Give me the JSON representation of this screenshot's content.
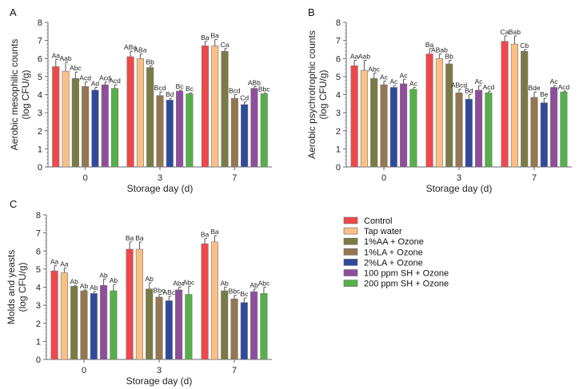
{
  "legend": [
    {
      "label": "Control",
      "color": "#f0474a"
    },
    {
      "label": "Tap water",
      "color": "#fbbf85"
    },
    {
      "label": "1%AA + Ozone",
      "color": "#7a7a43"
    },
    {
      "label": "1%LA + Ozone",
      "color": "#94774f"
    },
    {
      "label": "2%LA + Ozone",
      "color": "#2f4a9b"
    },
    {
      "label": "100 ppm SH + Ozone",
      "color": "#8d4e9c"
    },
    {
      "label": "200 ppm SH + Ozone",
      "color": "#55b04a"
    }
  ],
  "chart_data": [
    {
      "type": "bar",
      "panel": "A",
      "xlabel": "Storage day (d)",
      "ylabel": [
        "Aerobic mesophilic counts",
        "(log CFU/g)"
      ],
      "categories": [
        "0",
        "3",
        "7"
      ],
      "ylim": [
        0,
        8
      ],
      "yticks": [
        "0",
        "1",
        "2",
        "3",
        "4",
        "5",
        "6",
        "7",
        "8"
      ],
      "values": [
        [
          5.55,
          5.3,
          4.9,
          4.45,
          4.25,
          4.55,
          4.35
        ],
        [
          6.1,
          6.0,
          5.5,
          3.95,
          3.7,
          4.2,
          4.05
        ],
        [
          6.7,
          6.7,
          6.4,
          3.8,
          3.45,
          4.35,
          4.05
        ]
      ],
      "errors": [
        [
          0.4,
          0.5,
          0.35,
          0.25,
          0.15,
          0.15,
          0.2
        ],
        [
          0.3,
          0.25,
          0.1,
          0.2,
          0.1,
          0.05,
          0.05
        ],
        [
          0.25,
          0.35,
          0.15,
          0.2,
          0.15,
          0.1,
          0.03
        ]
      ],
      "labels": [
        [
          "Aa",
          "Aab",
          "Abc",
          "Acd",
          "Ad",
          "Acd",
          "Acd"
        ],
        [
          "ABa",
          "ABa",
          "Bb",
          "Bcd",
          "Bd",
          "Bc",
          "Bc"
        ],
        [
          "Ba",
          "Ba",
          "Ca",
          "Bcd",
          "Cd",
          "ABb",
          "Bbc"
        ]
      ]
    },
    {
      "type": "bar",
      "panel": "B",
      "xlabel": "Storage day (d)",
      "ylabel": [
        "Aerobic psychrotrophic counts",
        "(log CFU/g)"
      ],
      "categories": [
        "0",
        "3",
        "7"
      ],
      "ylim": [
        0,
        8
      ],
      "yticks": [
        "0",
        "1",
        "2",
        "3",
        "4",
        "5",
        "6",
        "7",
        "8"
      ],
      "values": [
        [
          5.6,
          5.35,
          4.9,
          4.55,
          4.4,
          4.6,
          4.3
        ],
        [
          6.25,
          6.0,
          5.7,
          4.1,
          3.75,
          4.25,
          4.1
        ],
        [
          6.95,
          6.8,
          6.4,
          3.85,
          3.55,
          4.4,
          4.15
        ]
      ],
      "errors": [
        [
          0.3,
          0.55,
          0.3,
          0.2,
          0.1,
          0.25,
          0.1
        ],
        [
          0.3,
          0.25,
          0.2,
          0.2,
          0.25,
          0.25,
          0.1
        ],
        [
          0.3,
          0.45,
          0.1,
          0.3,
          0.25,
          0.1,
          0.05
        ]
      ],
      "labels": [
        [
          "Aa",
          "Aab",
          "Abc",
          "Ac",
          "Ac",
          "Ac",
          "Ac"
        ],
        [
          "Ba",
          "ABab",
          "Bb",
          "ABcd",
          "Bd",
          "Ac",
          "Acd"
        ],
        [
          "Ca",
          "Bab",
          "Cb",
          "Bde",
          "Be",
          "Ac",
          "Acd"
        ]
      ]
    },
    {
      "type": "bar",
      "panel": "C",
      "xlabel": "Storage day (d)",
      "ylabel": [
        "Molds and yeasts",
        "(log CFU/g)"
      ],
      "categories": [
        "0",
        "3",
        "7"
      ],
      "ylim": [
        0,
        8
      ],
      "yticks": [
        "0",
        "1",
        "2",
        "3",
        "4",
        "5",
        "6",
        "7",
        "8"
      ],
      "values": [
        [
          4.9,
          4.8,
          4.05,
          3.8,
          3.65,
          4.1,
          3.8
        ],
        [
          6.1,
          6.1,
          3.9,
          3.45,
          3.25,
          3.85,
          3.6
        ],
        [
          6.4,
          6.5,
          3.8,
          3.35,
          3.15,
          3.75,
          3.65
        ]
      ],
      "errors": [
        [
          0.3,
          0.25,
          0.03,
          0.05,
          0.1,
          0.35,
          0.35
        ],
        [
          0.4,
          0.4,
          0.35,
          0.15,
          0.25,
          0.15,
          0.45
        ],
        [
          0.3,
          0.35,
          0.2,
          0.2,
          0.25,
          0.15,
          0.35
        ]
      ],
      "labels": [
        [
          "Aa",
          "Aa",
          "Ab",
          "Ab",
          "Ab",
          "Ab",
          "Ab"
        ],
        [
          "Ba",
          "Ba",
          "Ab",
          "Bbc",
          "ABc",
          "Abc",
          "Abc"
        ],
        [
          "Ba",
          "Ba",
          "Ab",
          "Bbc",
          "Bc",
          "Ab",
          "Abc"
        ]
      ]
    }
  ]
}
